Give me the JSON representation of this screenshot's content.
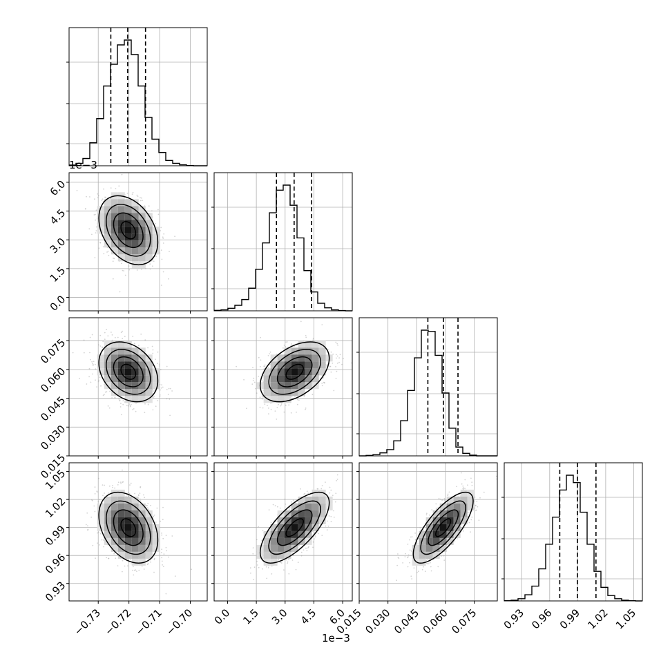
{
  "figure": {
    "offset_label_y": "1e−3",
    "offset_label_x": "1e−3"
  },
  "chart_data": {
    "type": "corner",
    "params": [
      {
        "range": [
          -0.7395,
          -0.6945
        ],
        "ticks": [
          -0.73,
          -0.72,
          -0.71,
          -0.7
        ],
        "tick_labels": [
          "−0.73",
          "−0.72",
          "−0.71",
          "−0.70"
        ],
        "quantiles": [
          -0.7259,
          -0.7204,
          -0.7146
        ],
        "mean": -0.7202,
        "sd": 0.0048
      },
      {
        "range": [
          -0.0007,
          0.0065
        ],
        "ticks": [
          0.0,
          0.0015,
          0.003,
          0.0045,
          0.006
        ],
        "tick_labels": [
          "0.0",
          "1.5",
          "3.0",
          "4.5",
          "6.0"
        ],
        "scale_label": "1e−3",
        "quantiles": [
          0.00255,
          0.00347,
          0.00438
        ],
        "mean": 0.0035,
        "sd": 0.0009
      },
      {
        "range": [
          0.015,
          0.087
        ],
        "ticks": [
          0.015,
          0.03,
          0.045,
          0.06,
          0.075
        ],
        "tick_labels": [
          "0.015",
          "0.030",
          "0.045",
          "0.060",
          "0.075"
        ],
        "quantiles": [
          0.0508,
          0.0589,
          0.0665
        ],
        "mean": 0.0588,
        "sd": 0.0078
      },
      {
        "range": [
          0.9113,
          1.0593
        ],
        "ticks": [
          0.93,
          0.96,
          0.99,
          1.02,
          1.05
        ],
        "tick_labels": [
          "0.93",
          "0.96",
          "0.99",
          "1.02",
          "1.05"
        ],
        "quantiles": [
          0.9708,
          0.9897,
          1.0096
        ],
        "mean": 0.9898,
        "sd": 0.019
      }
    ],
    "histograms": [
      {
        "param": 0,
        "bins": 20,
        "counts": [
          3,
          10,
          30,
          95,
          195,
          330,
          420,
          500,
          520,
          460,
          330,
          200,
          110,
          55,
          22,
          10,
          4,
          1,
          0,
          0
        ]
      },
      {
        "param": 1,
        "bins": 20,
        "counts": [
          2,
          4,
          10,
          22,
          45,
          90,
          165,
          270,
          390,
          480,
          500,
          420,
          290,
          160,
          75,
          30,
          12,
          4,
          1,
          0
        ]
      },
      {
        "param": 2,
        "bins": 20,
        "counts": [
          0,
          2,
          5,
          12,
          25,
          60,
          140,
          260,
          390,
          500,
          495,
          400,
          250,
          110,
          35,
          10,
          3,
          0,
          0,
          0
        ]
      },
      {
        "param": 3,
        "bins": 20,
        "counts": [
          1,
          3,
          9,
          25,
          60,
          130,
          230,
          340,
          450,
          510,
          480,
          360,
          230,
          120,
          55,
          22,
          9,
          3,
          1,
          0
        ]
      }
    ],
    "correlations": {
      "1-0": -0.35,
      "2-0": -0.3,
      "2-1": 0.45,
      "3-0": -0.35,
      "3-1": 0.7,
      "3-2": 0.75
    },
    "grid": true,
    "levels": [
      "0.5σ",
      "1σ",
      "1.5σ",
      "2σ"
    ],
    "colors": {
      "line": "#000000",
      "grid": "#b0b0b0",
      "scatter": "#9e9e9e"
    }
  }
}
